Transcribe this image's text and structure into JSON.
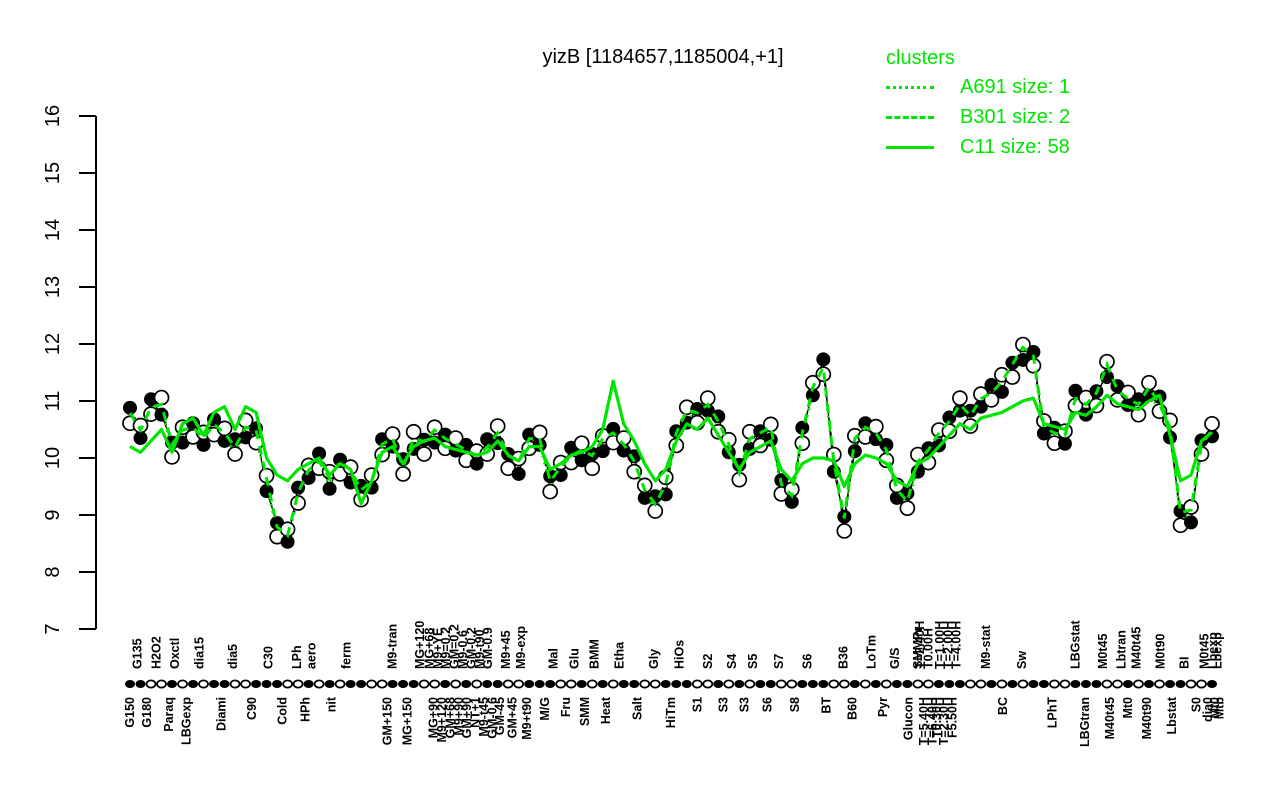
{
  "title": "yizB [1184657,1185004,+1]",
  "colors": {
    "cluster_green": "#00E400",
    "fg": "#000000",
    "bg": "#FFFFFF"
  },
  "legend": {
    "title": "clusters",
    "entries": [
      {
        "label": "A691 size: 1",
        "style": "dotted"
      },
      {
        "label": "B301 size: 2",
        "style": "dashed"
      },
      {
        "label": "C11 size: 58",
        "style": "solid"
      }
    ]
  },
  "chart_data": {
    "type": "line",
    "title": "yizB [1184657,1185004,+1]",
    "xlabel": "",
    "ylabel": "",
    "ylim": [
      7,
      16
    ],
    "y_ticks": [
      7,
      8,
      9,
      10,
      11,
      12,
      13,
      14,
      15,
      16
    ],
    "grid": false,
    "legend_position": "top-right",
    "n_conditions": 104,
    "series": [
      {
        "name": "expression-mean",
        "values": [
          10.75,
          10.45,
          10.85,
          10.9,
          10.2,
          10.45,
          10.5,
          10.3,
          10.55,
          10.4,
          10.15,
          10.5,
          10.45,
          9.6,
          8.75,
          8.6,
          9.35,
          9.75,
          9.9,
          9.6,
          9.9,
          9.75,
          9.4,
          9.55,
          10.2,
          10.3,
          9.8,
          10.3,
          10.25,
          10.45,
          10.3,
          10.2,
          10.1,
          10.0,
          10.15,
          10.4,
          10.0,
          9.9,
          10.3,
          10.3,
          9.55,
          9.8,
          10.0,
          10.1,
          10.0,
          10.3,
          10.4,
          10.2,
          9.9,
          9.4,
          9.15,
          9.5,
          10.4,
          10.8,
          10.75,
          10.9,
          10.6,
          10.2,
          9.7,
          10.3,
          10.4,
          10.5,
          9.5,
          9.3,
          10.4,
          11.2,
          11.55,
          9.9,
          8.9,
          10.3,
          10.5,
          10.4,
          10.1,
          9.4,
          9.2,
          9.9,
          10.1,
          10.4,
          10.6,
          10.9,
          10.7,
          11.0,
          11.1,
          11.3,
          11.6,
          11.9,
          11.75,
          10.5,
          10.4,
          10.35,
          11.0,
          10.9,
          11.1,
          11.6,
          11.15,
          11.0,
          10.9,
          11.2,
          10.9,
          10.5,
          9.0,
          9.05,
          10.2,
          10.45
        ]
      },
      {
        "name": "C11-cluster-profile",
        "values": [
          10.2,
          10.1,
          10.3,
          10.5,
          10.1,
          10.6,
          10.7,
          10.4,
          10.8,
          10.9,
          10.5,
          10.9,
          10.8,
          10.0,
          9.7,
          9.6,
          9.8,
          9.9,
          10.0,
          9.7,
          9.9,
          9.8,
          9.2,
          9.6,
          10.1,
          10.2,
          9.9,
          10.2,
          10.3,
          10.35,
          10.2,
          10.15,
          10.1,
          10.05,
          10.1,
          10.3,
          10.05,
          9.95,
          10.2,
          10.2,
          9.8,
          9.9,
          10.05,
          10.1,
          10.2,
          10.5,
          11.35,
          10.6,
          10.3,
          9.9,
          9.6,
          9.8,
          10.3,
          10.6,
          10.5,
          10.7,
          10.4,
          10.1,
          9.8,
          10.1,
          10.2,
          10.3,
          9.8,
          9.6,
          9.9,
          10.0,
          10.0,
          9.95,
          9.5,
          9.9,
          10.05,
          10.0,
          9.9,
          9.6,
          9.5,
          9.9,
          10.0,
          10.2,
          10.4,
          10.6,
          10.5,
          10.7,
          10.75,
          10.8,
          10.9,
          11.0,
          11.05,
          10.6,
          10.55,
          10.5,
          10.8,
          10.75,
          10.9,
          11.1,
          10.95,
          10.9,
          10.85,
          11.0,
          11.1,
          10.4,
          9.6,
          9.7,
          10.3,
          10.45
        ]
      }
    ],
    "replicate_offsets": {
      "filled": [
        0.13,
        -0.1,
        0.18,
        -0.14,
        0.07,
        -0.18,
        0.11,
        -0.07
      ],
      "open": [
        -0.14,
        0.12,
        -0.08,
        0.16,
        -0.18,
        0.09,
        -0.13,
        0.15
      ]
    },
    "cluster_line_offsets": {
      "A691": -0.05,
      "B301": 0.04
    },
    "axis_dot_pattern": "ffoofofoffoofffoofofoffoofffoofofoffoofffoofofoffoofffoofofoffoofffoofofoffoofffoofofoffoofffoofofoffoof",
    "x_labels": [
      [
        0,
        "b",
        "G150"
      ],
      [
        0.7,
        "t",
        "G135"
      ],
      [
        1.6,
        "b",
        "G180"
      ],
      [
        2.5,
        "t",
        "H2O2"
      ],
      [
        3.7,
        "b",
        "Paraq"
      ],
      [
        4.3,
        "t",
        "Oxctl"
      ],
      [
        5.4,
        "b",
        "LBGexp"
      ],
      [
        6.6,
        "t",
        "dia15"
      ],
      [
        8.7,
        "b",
        "Diami"
      ],
      [
        9.8,
        "t",
        "dia5"
      ],
      [
        11.6,
        "b",
        "C90"
      ],
      [
        13.2,
        "t",
        "C30"
      ],
      [
        14.5,
        "b",
        "Cold"
      ],
      [
        15.9,
        "t",
        "LPh"
      ],
      [
        16.7,
        "b",
        "HPh"
      ],
      [
        17.3,
        "t",
        "aero"
      ],
      [
        19.2,
        "b",
        "nit"
      ],
      [
        20.6,
        "t",
        "ferm"
      ],
      [
        24.5,
        "b",
        "GM+150"
      ],
      [
        25.0,
        "t",
        "M9-tran"
      ],
      [
        26.4,
        "b",
        "MG+150"
      ],
      [
        27.6,
        "t",
        "MG+120"
      ],
      [
        28.5,
        "t",
        "MG+68"
      ],
      [
        28.9,
        "b",
        "MG+90"
      ],
      [
        29.3,
        "t",
        "M9+YE"
      ],
      [
        29.7,
        "b",
        "M9+120"
      ],
      [
        30.1,
        "t",
        "M9=0.2"
      ],
      [
        30.5,
        "b",
        "GM+68"
      ],
      [
        30.9,
        "t",
        "GM=0.2"
      ],
      [
        31.3,
        "b",
        "M9+90"
      ],
      [
        31.7,
        "t",
        "M9-0.6"
      ],
      [
        32.1,
        "b",
        "GM+90"
      ],
      [
        32.5,
        "t",
        "GM-0.2"
      ],
      [
        32.9,
        "b",
        "NT+1"
      ],
      [
        33.3,
        "t",
        "M9-t90"
      ],
      [
        33.7,
        "b",
        "M9-t45"
      ],
      [
        34.1,
        "t",
        "GM-0.9"
      ],
      [
        34.5,
        "b",
        "GM-0.6"
      ],
      [
        35.2,
        "b",
        "GM-45"
      ],
      [
        35.8,
        "t",
        "M9+45"
      ],
      [
        36.4,
        "b",
        "GM+45"
      ],
      [
        37.2,
        "t",
        "M9-exp"
      ],
      [
        37.8,
        "b",
        "M9+t90"
      ],
      [
        39.5,
        "b",
        "M/G"
      ],
      [
        40.3,
        "t",
        "Mal"
      ],
      [
        41.5,
        "b",
        "Fru"
      ],
      [
        42.3,
        "t",
        "Glu"
      ],
      [
        43.3,
        "b",
        "SMM"
      ],
      [
        44.2,
        "t",
        "BMM"
      ],
      [
        45.3,
        "b",
        "Heat"
      ],
      [
        46.6,
        "t",
        "Etha"
      ],
      [
        48.3,
        "b",
        "Salt"
      ],
      [
        49.9,
        "t",
        "Gly"
      ],
      [
        51.5,
        "b",
        "HiTm"
      ],
      [
        52.3,
        "t",
        "HiOs"
      ],
      [
        54,
        "b",
        "S1"
      ],
      [
        55,
        "t",
        "S2"
      ],
      [
        56.5,
        "b",
        "S3"
      ],
      [
        57.3,
        "t",
        "S4"
      ],
      [
        58.5,
        "b",
        "S3"
      ],
      [
        59.3,
        "t",
        "S5"
      ],
      [
        60.7,
        "b",
        "S6"
      ],
      [
        61.8,
        "t",
        "S7"
      ],
      [
        63.3,
        "b",
        "S8"
      ],
      [
        64.5,
        "t",
        "S6"
      ],
      [
        66.3,
        "b",
        "BT"
      ],
      [
        67.9,
        "t",
        "B36"
      ],
      [
        68.8,
        "b",
        "B60"
      ],
      [
        70.6,
        "t",
        "LoTm"
      ],
      [
        71.7,
        "b",
        "Pyr"
      ],
      [
        72.8,
        "t",
        "G/S"
      ],
      [
        74.1,
        "b",
        "Glucon"
      ],
      [
        75.0,
        "t",
        "SMMPr"
      ],
      [
        75.2,
        "t",
        "T=2.40H"
      ],
      [
        75.6,
        "b",
        "T=5.40H"
      ],
      [
        76.0,
        "t",
        "T0.00H"
      ],
      [
        76.4,
        "b",
        "T=6.40H"
      ],
      [
        76.8,
        "b",
        "T0.30H"
      ],
      [
        77.1,
        "t",
        "T=1.00H"
      ],
      [
        77.5,
        "b",
        "T=2.30H"
      ],
      [
        77.9,
        "t",
        "T=2.00H"
      ],
      [
        78.3,
        "b",
        "F5.50H"
      ],
      [
        78.7,
        "t",
        "T=4.00H"
      ],
      [
        81.5,
        "t",
        "M9-stat"
      ],
      [
        83.1,
        "b",
        "BC"
      ],
      [
        84.9,
        "t",
        "Sw"
      ],
      [
        87.8,
        "b",
        "LPhT"
      ],
      [
        90.0,
        "t",
        "LBGstat"
      ],
      [
        90.9,
        "b",
        "LBGtran"
      ],
      [
        92.6,
        "t",
        "M0t45"
      ],
      [
        93.3,
        "b",
        "M40t45"
      ],
      [
        94.4,
        "t",
        "Lbtran"
      ],
      [
        95.0,
        "b",
        "Mt0"
      ],
      [
        95.8,
        "t",
        "M40t45"
      ],
      [
        96.8,
        "b",
        "M40t90"
      ],
      [
        98.1,
        "t",
        "M0t90"
      ],
      [
        99.2,
        "b",
        "Lbstat"
      ],
      [
        100.4,
        "t",
        "BI"
      ],
      [
        101.5,
        "b",
        "S0"
      ],
      [
        102.3,
        "t",
        "M0t45"
      ],
      [
        102.6,
        "b",
        "dia0"
      ],
      [
        103.1,
        "t",
        "Lbexp"
      ],
      [
        103.3,
        "b",
        "Mt0"
      ],
      [
        103.5,
        "t",
        "Lbexp"
      ],
      [
        103.7,
        "b",
        "Mtb"
      ]
    ]
  }
}
